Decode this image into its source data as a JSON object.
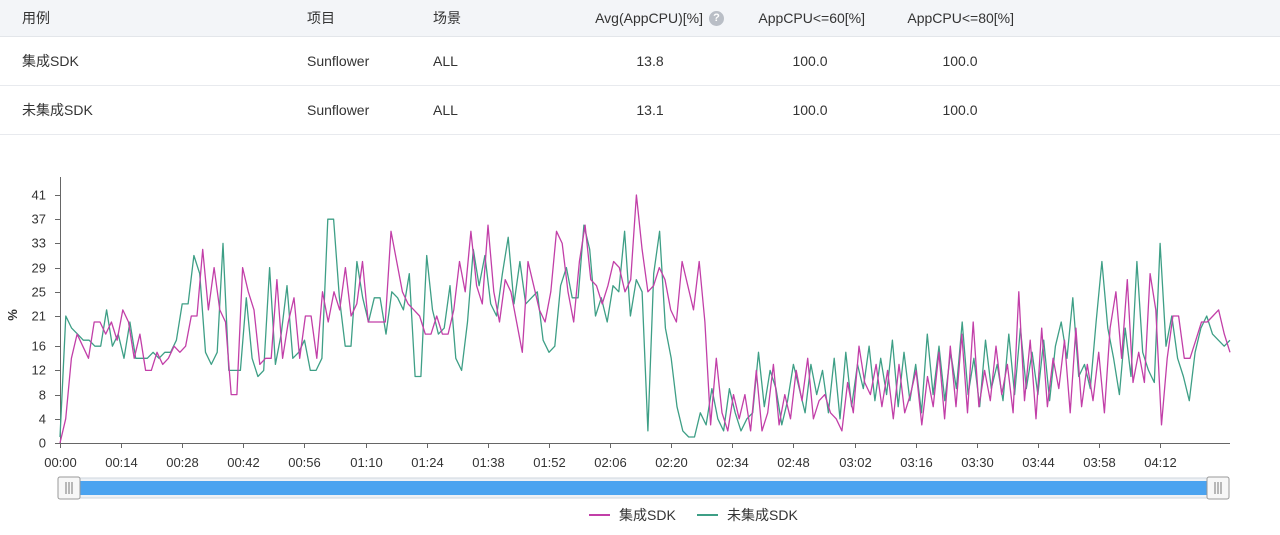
{
  "table": {
    "headers": [
      "用例",
      "项目",
      "场景",
      "Avg(AppCPU)[%]",
      "AppCPU<=60[%]",
      "AppCPU<=80[%]"
    ],
    "help_icon": "question-icon",
    "rows": [
      [
        "集成SDK",
        "Sunflower",
        "ALL",
        "13.8",
        "100.0",
        "100.0"
      ],
      [
        "未集成SDK",
        "Sunflower",
        "ALL",
        "13.1",
        "100.0",
        "100.0"
      ]
    ]
  },
  "colors": {
    "series1": "#c23fa8",
    "series2": "#3e9f86",
    "slider_fill": "#4aa3f0",
    "axis": "#666666"
  },
  "chart_data": {
    "type": "line",
    "title": "",
    "xlabel": "",
    "ylabel": "%",
    "ylim": [
      0,
      41
    ],
    "ytick_labels": [
      "0",
      "4",
      "8",
      "12",
      "16",
      "21",
      "25",
      "29",
      "33",
      "37",
      "41"
    ],
    "xtick_labels": [
      "00:00",
      "00:14",
      "00:28",
      "00:42",
      "00:56",
      "01:10",
      "01:24",
      "01:38",
      "01:52",
      "02:06",
      "02:20",
      "02:34",
      "02:48",
      "03:02",
      "03:16",
      "03:30",
      "03:44",
      "03:58",
      "04:12"
    ],
    "duration_seconds": 268,
    "legend_position": "bottom",
    "series": [
      {
        "name": "集成SDK",
        "values": [
          0,
          4,
          14,
          18,
          16,
          14,
          20,
          20,
          18,
          20,
          17,
          22,
          20,
          14,
          18,
          12,
          12,
          15,
          13,
          14,
          16,
          15,
          16,
          21,
          21,
          32,
          22,
          29,
          22,
          20,
          8,
          8,
          29,
          25,
          22,
          13,
          14,
          14,
          27,
          14,
          20,
          24,
          14,
          21,
          21,
          14,
          25,
          20,
          25,
          22,
          29,
          21,
          23,
          30,
          20,
          20,
          20,
          20,
          35,
          30,
          25,
          23,
          22,
          21,
          18,
          18,
          21,
          18,
          18,
          22,
          30,
          25,
          35,
          26,
          23,
          36,
          25,
          20,
          27,
          25,
          20,
          15,
          30,
          26,
          22,
          20,
          25,
          35,
          33,
          25,
          20,
          30,
          36,
          27,
          26,
          23,
          26,
          30,
          29,
          25,
          27,
          41,
          32,
          25,
          26,
          29,
          27,
          22,
          20,
          30,
          26,
          22,
          30,
          20,
          3,
          14,
          5,
          2,
          8,
          4,
          8,
          2,
          12,
          2,
          5,
          13,
          3,
          8,
          4,
          12,
          7,
          14,
          4,
          7,
          8,
          5,
          4,
          2,
          10,
          5,
          16,
          10,
          8,
          13,
          6,
          12,
          4,
          13,
          5,
          8,
          12,
          3,
          11,
          6,
          15,
          4,
          16,
          6,
          18,
          5,
          20,
          6,
          12,
          7,
          16,
          8,
          13,
          5,
          25,
          7,
          17,
          4,
          19,
          6,
          14,
          9,
          17,
          5,
          19,
          6,
          13,
          7,
          15,
          5,
          19,
          25,
          14,
          27,
          10,
          15,
          10,
          28,
          22,
          3,
          14,
          21,
          21,
          14,
          14,
          17,
          20,
          20,
          21,
          22,
          18,
          15
        ]
      },
      {
        "name": "未集成SDK",
        "values": [
          1,
          21,
          19,
          18,
          17,
          17,
          16,
          16,
          22,
          16,
          18,
          14,
          20,
          14,
          14,
          14,
          15,
          14,
          15,
          15,
          17,
          23,
          23,
          31,
          28,
          15,
          13,
          15,
          33,
          12,
          12,
          12,
          24,
          14,
          11,
          12,
          29,
          13,
          18,
          26,
          14,
          15,
          17,
          12,
          12,
          14,
          37,
          37,
          24,
          16,
          16,
          30,
          24,
          20,
          24,
          24,
          18,
          25,
          24,
          22,
          28,
          11,
          11,
          31,
          22,
          18,
          19,
          26,
          14,
          12,
          20,
          32,
          26,
          31,
          23,
          21,
          28,
          34,
          23,
          30,
          23,
          24,
          25,
          17,
          15,
          16,
          26,
          29,
          24,
          24,
          36,
          32,
          21,
          24,
          20,
          26,
          25,
          35,
          21,
          27,
          25,
          2,
          28,
          35,
          19,
          14,
          6,
          2,
          1,
          1,
          5,
          3,
          9,
          4,
          2,
          9,
          5,
          2,
          4,
          5,
          15,
          6,
          12,
          9,
          3,
          7,
          13,
          9,
          5,
          13,
          8,
          12,
          5,
          14,
          4,
          15,
          6,
          13,
          9,
          16,
          7,
          14,
          8,
          17,
          6,
          15,
          7,
          13,
          5,
          18,
          8,
          16,
          7,
          15,
          9,
          20,
          8,
          14,
          6,
          17,
          9,
          13,
          7,
          18,
          8,
          19,
          9,
          15,
          8,
          17,
          7,
          16,
          20,
          14,
          24,
          11,
          13,
          9,
          20,
          30,
          19,
          14,
          8,
          19,
          11,
          30,
          15,
          12,
          10,
          33,
          16,
          21,
          14,
          11,
          7,
          15,
          19,
          21,
          18,
          17,
          16,
          17
        ]
      }
    ]
  }
}
